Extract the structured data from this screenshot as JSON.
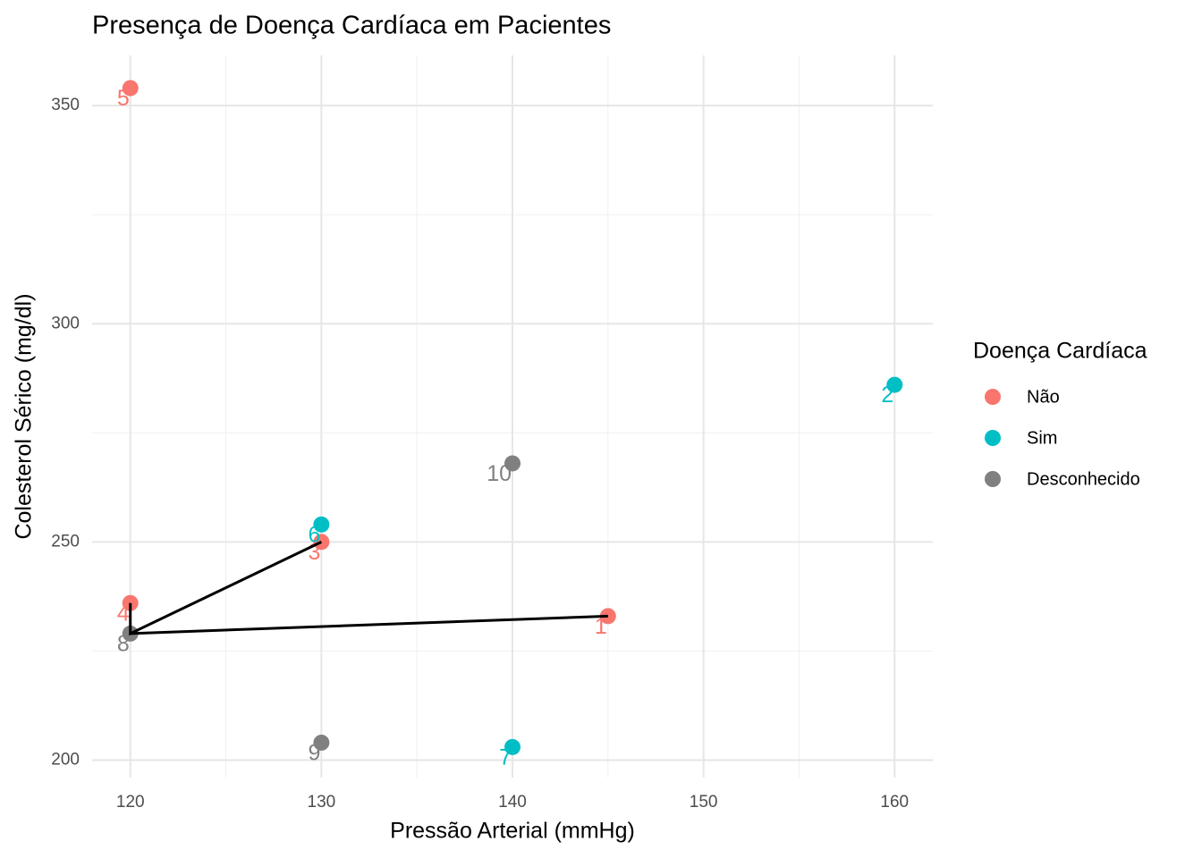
{
  "chart_data": {
    "type": "scatter",
    "title": "Presença de Doença Cardíaca em Pacientes",
    "x_label": "Pressão Arterial (mmHg)",
    "y_label": "Colesterol Sérico (mg/dl)",
    "legend_title": "Doença Cardíaca",
    "legend_position": "right",
    "grid": true,
    "xlim": [
      118,
      162
    ],
    "ylim": [
      196,
      361.5
    ],
    "xticks": [
      120,
      130,
      140,
      150,
      160
    ],
    "yticks": [
      200,
      250,
      300,
      350
    ],
    "xminor": [
      125,
      135,
      145,
      155
    ],
    "yminor": [
      225,
      275,
      325
    ],
    "series": [
      {
        "name": "Não",
        "color": "#F8766D",
        "x": [
          145,
          130,
          120,
          120
        ],
        "values": [
          233,
          250,
          236,
          354
        ],
        "labels": [
          "1",
          "3",
          "4",
          "5"
        ]
      },
      {
        "name": "Sim",
        "color": "#00BFC4",
        "x": [
          160,
          130,
          140
        ],
        "values": [
          286,
          254,
          203
        ],
        "labels": [
          "2",
          "6",
          "7"
        ]
      },
      {
        "name": "Desconhecido",
        "color": "#808080",
        "x": [
          120,
          130,
          140
        ],
        "values": [
          229,
          204,
          268
        ],
        "labels": [
          "8",
          "9",
          "10"
        ]
      }
    ],
    "lines": [
      {
        "color": "#000000",
        "x": [
          120,
          120,
          130
        ],
        "values": [
          236,
          229,
          250
        ]
      },
      {
        "color": "#000000",
        "x": [
          120,
          145
        ],
        "values": [
          229,
          233
        ]
      }
    ]
  }
}
